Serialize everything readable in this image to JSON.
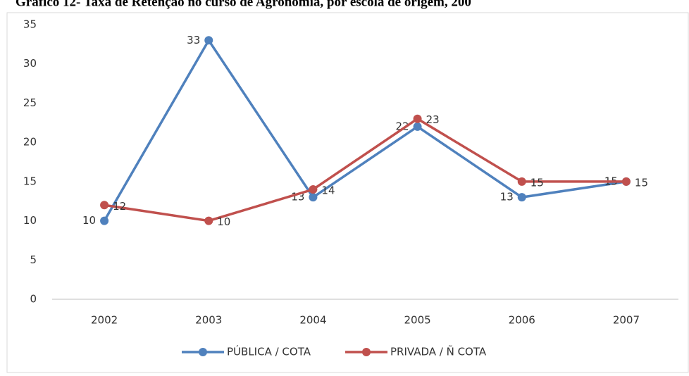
{
  "chart_data": {
    "type": "line",
    "title": "Gráfico 12- Taxa de Retenção no curso de Agronomia, por escola de origem, 200",
    "categories": [
      "2002",
      "2003",
      "2004",
      "2005",
      "2006",
      "2007"
    ],
    "series": [
      {
        "name": "PÚBLICA / COTA",
        "color": "#4f81bd",
        "values": [
          10,
          33,
          13,
          22,
          13,
          15
        ]
      },
      {
        "name": "PRIVADA / Ñ COTA",
        "color": "#c0504d",
        "values": [
          12,
          10,
          14,
          23,
          15,
          15
        ]
      }
    ],
    "ylim": [
      0,
      35
    ],
    "yticks": [
      0,
      5,
      10,
      15,
      20,
      25,
      30,
      35
    ],
    "grid": false,
    "legend": "bottom"
  }
}
